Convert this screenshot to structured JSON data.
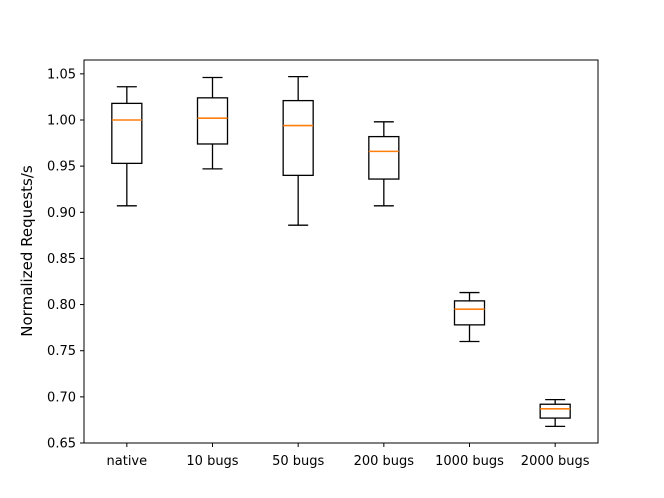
{
  "chart_data": {
    "type": "box",
    "title": "",
    "xlabel": "",
    "ylabel": "Normalized Requests/s",
    "ylim": [
      0.65,
      1.065
    ],
    "yticks": [
      "0.65",
      "0.70",
      "0.75",
      "0.80",
      "0.85",
      "0.90",
      "0.95",
      "1.00",
      "1.05"
    ],
    "grid": false,
    "categories": [
      "native",
      "10 bugs",
      "50 bugs",
      "200 bugs",
      "1000 bugs",
      "2000 bugs"
    ],
    "boxes": [
      {
        "category": "native",
        "whisker_low": 0.907,
        "q1": 0.953,
        "median": 1.0,
        "q3": 1.018,
        "whisker_high": 1.036
      },
      {
        "category": "10 bugs",
        "whisker_low": 0.947,
        "q1": 0.974,
        "median": 1.002,
        "q3": 1.024,
        "whisker_high": 1.046
      },
      {
        "category": "50 bugs",
        "whisker_low": 0.886,
        "q1": 0.94,
        "median": 0.994,
        "q3": 1.021,
        "whisker_high": 1.047
      },
      {
        "category": "200 bugs",
        "whisker_low": 0.907,
        "q1": 0.936,
        "median": 0.966,
        "q3": 0.982,
        "whisker_high": 0.998
      },
      {
        "category": "1000 bugs",
        "whisker_low": 0.76,
        "q1": 0.778,
        "median": 0.795,
        "q3": 0.804,
        "whisker_high": 0.813
      },
      {
        "category": "2000 bugs",
        "whisker_low": 0.668,
        "q1": 0.677,
        "median": 0.687,
        "q3": 0.692,
        "whisker_high": 0.697
      }
    ],
    "colors": {
      "box": "#000000",
      "median": "#ff7f0e",
      "axis": "#000000"
    }
  }
}
